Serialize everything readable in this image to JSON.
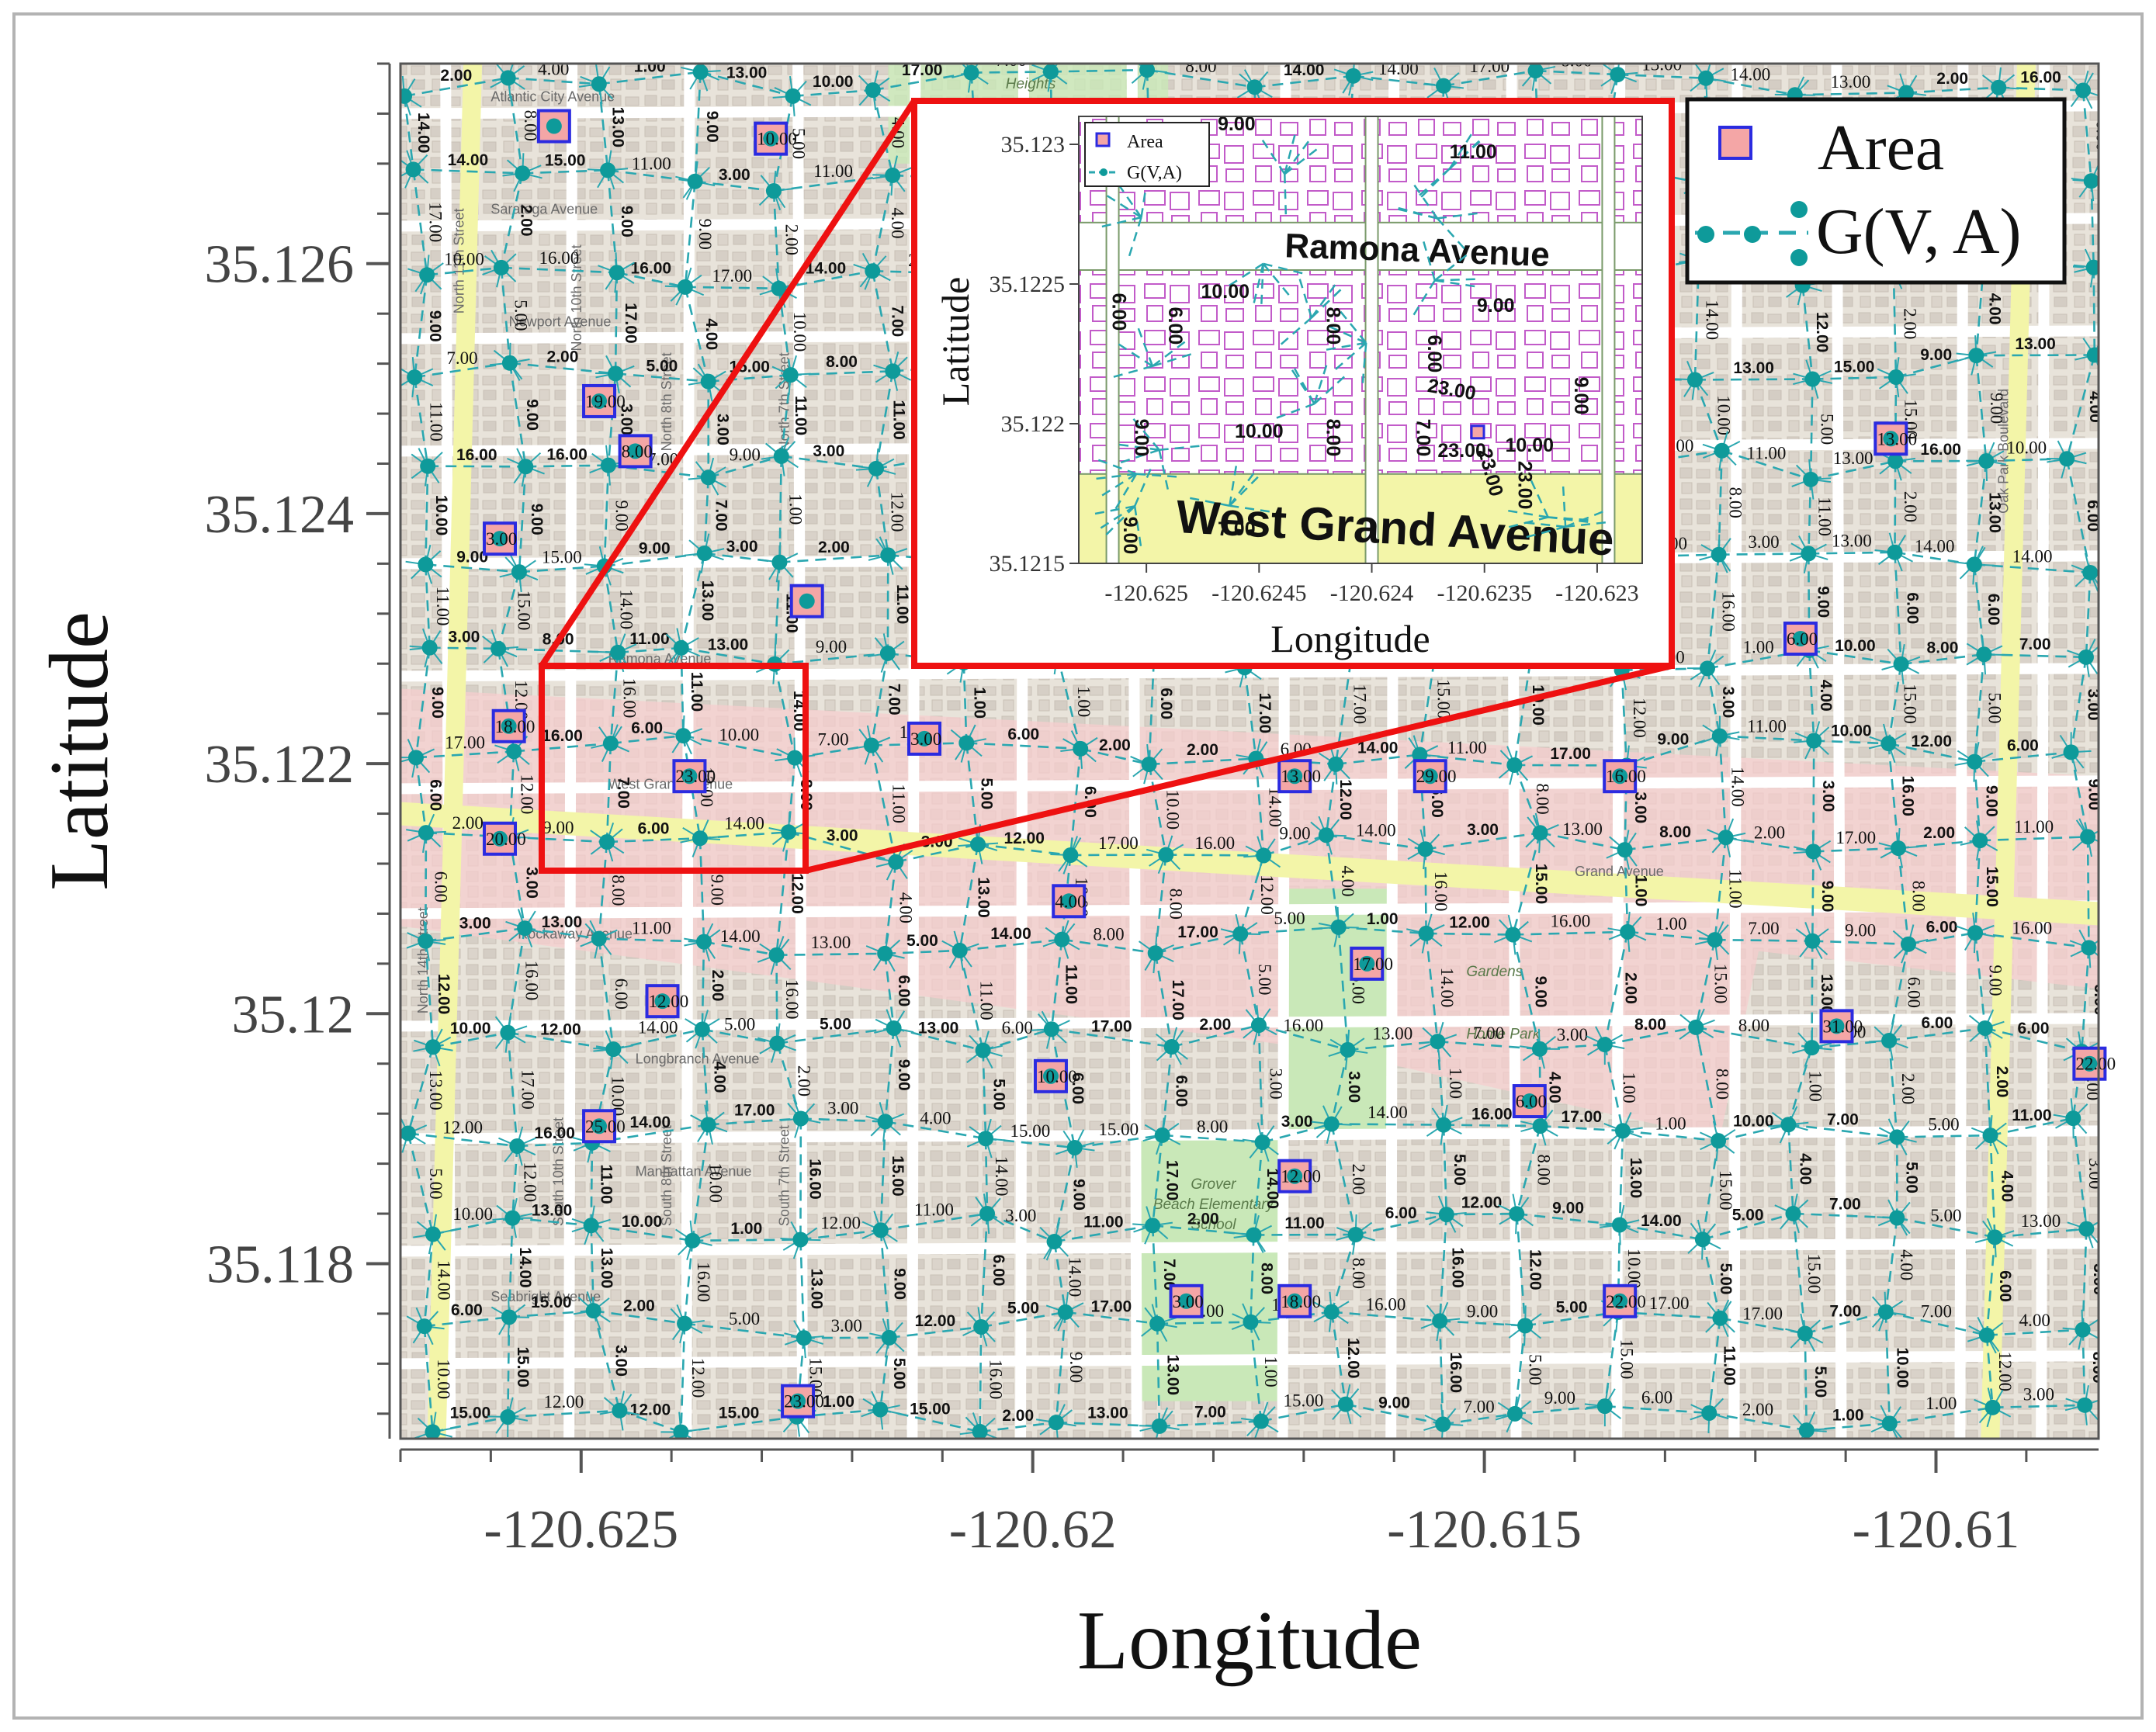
{
  "chart_data": {
    "type": "scatter",
    "xlabel": "Longitude",
    "ylabel": "Latitude",
    "xlim": [
      -120.627,
      -120.6082
    ],
    "ylim": [
      35.1166,
      35.1276
    ],
    "xticks": [
      -120.625,
      -120.62,
      -120.615,
      -120.61
    ],
    "xtick_labels": [
      "-120.625",
      "-120.62",
      "-120.615",
      "-120.61"
    ],
    "yticks": [
      35.118,
      35.12,
      35.122,
      35.124,
      35.126
    ],
    "ytick_labels": [
      "35.118",
      "35.12",
      "35.122",
      "35.124",
      "35.126"
    ],
    "legend": {
      "placement": "top-right",
      "entries": [
        {
          "label": "Area",
          "marker": "square"
        },
        {
          "label": "G(V, A)",
          "marker": "dot-dash-line"
        }
      ]
    },
    "colors": {
      "area_fill": "#f4a6a6",
      "area_edge": "#2b2be0",
      "node": "#0e9a9a",
      "edge": "#2aa7b0",
      "zoom_box": "#ee1111",
      "map_bg": "#ebe7df",
      "road_main": "#f3f5a8",
      "commercial": "#f5cdcd",
      "park": "#c9e8b8"
    },
    "map_labels": {
      "streets": [
        "Atlantic City Avenue",
        "Saratoga Avenue",
        "Newport Avenue",
        "Ramona Avenue",
        "West Grand Avenue",
        "Rockaway Avenue",
        "Longbranch Avenue",
        "Manhattan Avenue",
        "Seabright Avenue",
        "North 7th Street",
        "North 8th Street",
        "North 10th Street",
        "North 11th Street",
        "North 14th Street",
        "South 7th Street",
        "South 8th Street",
        "South 10th Street",
        "Oak Park Boulevard",
        "Heights",
        "Grand Avenue",
        "Home Park",
        "Gardens"
      ],
      "school": [
        "Grover",
        "Beach Elementary",
        "School"
      ]
    },
    "areas": [
      {
        "x": -120.6253,
        "y": 35.1271,
        "label": ""
      },
      {
        "x": -120.6229,
        "y": 35.127,
        "label": "10.00"
      },
      {
        "x": -120.6248,
        "y": 35.1249,
        "label": "19.00"
      },
      {
        "x": -120.6244,
        "y": 35.1245,
        "label": "8.00"
      },
      {
        "x": -120.6259,
        "y": 35.1238,
        "label": "3.00"
      },
      {
        "x": -120.6225,
        "y": 35.1233,
        "label": ""
      },
      {
        "x": -120.6258,
        "y": 35.1223,
        "label": "18.00"
      },
      {
        "x": -120.6238,
        "y": 35.1219,
        "label": "23.00"
      },
      {
        "x": -120.6212,
        "y": 35.1222,
        "label": "3.00"
      },
      {
        "x": -120.6259,
        "y": 35.1214,
        "label": "20.00"
      },
      {
        "x": -120.6196,
        "y": 35.1209,
        "label": "4.00"
      },
      {
        "x": -120.6171,
        "y": 35.1219,
        "label": "13.00"
      },
      {
        "x": -120.6156,
        "y": 35.1219,
        "label": "29.00"
      },
      {
        "x": -120.6135,
        "y": 35.1219,
        "label": "16.00"
      },
      {
        "x": -120.6163,
        "y": 35.1204,
        "label": "17.00"
      },
      {
        "x": -120.6241,
        "y": 35.1201,
        "label": "12.00"
      },
      {
        "x": -120.6248,
        "y": 35.1191,
        "label": "25.00"
      },
      {
        "x": -120.6198,
        "y": 35.1195,
        "label": "10.00"
      },
      {
        "x": -120.6145,
        "y": 35.1193,
        "label": "6.00"
      },
      {
        "x": -120.6171,
        "y": 35.1187,
        "label": "12.00"
      },
      {
        "x": -120.6183,
        "y": 35.1177,
        "label": "3.00"
      },
      {
        "x": -120.6171,
        "y": 35.1177,
        "label": "18.00"
      },
      {
        "x": -120.6135,
        "y": 35.1177,
        "label": "22.00"
      },
      {
        "x": -120.6226,
        "y": 35.1169,
        "label": "23.00"
      },
      {
        "x": -120.6115,
        "y": 35.123,
        "label": "6.00"
      },
      {
        "x": -120.6105,
        "y": 35.1246,
        "label": "13.00"
      },
      {
        "x": -120.6101,
        "y": 35.1262,
        "label": ""
      },
      {
        "x": -120.6111,
        "y": 35.1199,
        "label": "31.00"
      },
      {
        "x": -120.6083,
        "y": 35.1196,
        "label": "22.00"
      }
    ],
    "edge_labels_sample": [
      "9.00",
      "11.00",
      "12.00",
      "4.00",
      "6.00",
      "7.00",
      "15.00",
      "10.00",
      "5.00",
      "8.00",
      "3.00",
      "13.00",
      "2.00",
      "1.00",
      "14.00",
      "16.00",
      "17.00"
    ],
    "inset": {
      "xlabel": "Longitude",
      "ylabel": "Latitude",
      "xlim": [
        -120.6253,
        -120.6228
      ],
      "ylim": [
        35.1215,
        35.1231
      ],
      "xticks": [
        -120.625,
        -120.6245,
        -120.624,
        -120.6235,
        -120.623
      ],
      "xtick_labels": [
        "-120.625",
        "-120.6245",
        "-120.624",
        "-120.6235",
        "-120.623"
      ],
      "yticks": [
        35.1215,
        35.122,
        35.1225,
        35.123
      ],
      "ytick_labels": [
        "35.1215",
        "35.122",
        "35.1225",
        "35.123"
      ],
      "legend": {
        "placement": "top-left",
        "entries": [
          {
            "label": "Area"
          },
          {
            "label": "G(V,A)"
          }
        ]
      },
      "streets": [
        "Ramona Avenue",
        "West Grand Avenue"
      ],
      "edge_labels": [
        {
          "x": -120.6246,
          "y": 35.12305,
          "text": "9.00",
          "rot": 0
        },
        {
          "x": -120.62355,
          "y": 35.12295,
          "text": "11.00",
          "rot": 0
        },
        {
          "x": -120.62465,
          "y": 35.12245,
          "text": "10.00",
          "rot": 0
        },
        {
          "x": -120.62345,
          "y": 35.1224,
          "text": "9.00",
          "rot": 0
        },
        {
          "x": -120.62515,
          "y": 35.1224,
          "text": "6.00",
          "rot": 90
        },
        {
          "x": -120.6249,
          "y": 35.12235,
          "text": "6.00",
          "rot": 90
        },
        {
          "x": -120.6242,
          "y": 35.12235,
          "text": "8.00",
          "rot": 90
        },
        {
          "x": -120.62375,
          "y": 35.12225,
          "text": "6.00",
          "rot": 90
        },
        {
          "x": -120.62365,
          "y": 35.1221,
          "text": "23.00",
          "rot": 10
        },
        {
          "x": -120.6231,
          "y": 35.1221,
          "text": "9.00",
          "rot": 90
        },
        {
          "x": -120.62505,
          "y": 35.12195,
          "text": "9.00",
          "rot": 90
        },
        {
          "x": -120.6245,
          "y": 35.12195,
          "text": "10.00",
          "rot": 0
        },
        {
          "x": -120.6242,
          "y": 35.12195,
          "text": "8.00",
          "rot": 90
        },
        {
          "x": -120.6238,
          "y": 35.12195,
          "text": "7.00",
          "rot": 90
        },
        {
          "x": -120.6236,
          "y": 35.12188,
          "text": "23.00",
          "rot": 0
        },
        {
          "x": -120.6235,
          "y": 35.12182,
          "text": "23.00",
          "rot": 75
        },
        {
          "x": -120.6233,
          "y": 35.1219,
          "text": "10.00",
          "rot": 0
        },
        {
          "x": -120.62335,
          "y": 35.12178,
          "text": "23.00",
          "rot": 90
        },
        {
          "x": -120.6246,
          "y": 35.1216,
          "text": "7.00",
          "rot": 0
        },
        {
          "x": -120.6251,
          "y": 35.1216,
          "text": "9.00",
          "rot": 90
        }
      ]
    }
  }
}
